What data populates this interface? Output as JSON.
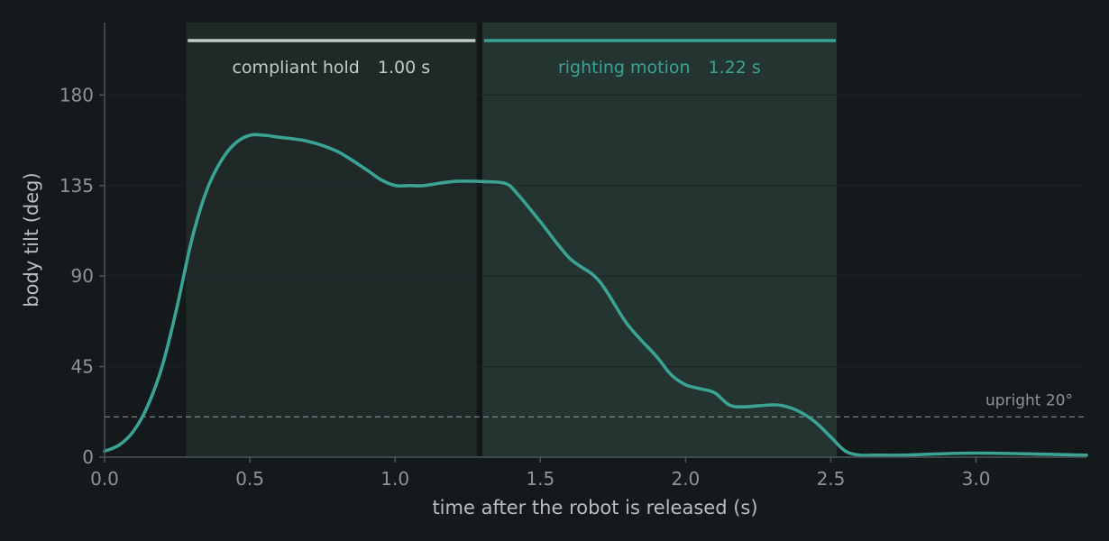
{
  "colors": {
    "background": "#141a1b",
    "hold_band": "#1e2928",
    "righting_band": "#243431",
    "divider": "#101515",
    "hold_accent": "#c4c8c6",
    "righting_accent": "#3aa394",
    "curve": "#3aa394",
    "axis": "#4b5456",
    "grid": "#1c2324",
    "reference_line": "#8c9497"
  },
  "chart_data": {
    "type": "line",
    "xlabel": "time after the robot is released  (s)",
    "ylabel": "body tilt  (deg)",
    "xlim": [
      0,
      3.38
    ],
    "ylim": [
      0,
      216
    ],
    "x_ticks": [
      0.0,
      0.5,
      1.0,
      1.5,
      2.0,
      2.5,
      3.0
    ],
    "x_tick_labels": [
      "0.0",
      "0.5",
      "1.0",
      "1.5",
      "2.0",
      "2.5",
      "3.0"
    ],
    "y_ticks": [
      0,
      45,
      90,
      135,
      180
    ],
    "y_tick_labels": [
      "0",
      "45",
      "90",
      "135",
      "180"
    ],
    "grid": "horizontal",
    "phases": [
      {
        "start": 0.28,
        "end": 1.28,
        "label": "compliant hold",
        "duration_label": "1.00 s"
      },
      {
        "start": 1.3,
        "end": 2.52,
        "label": "righting motion",
        "duration_label": "1.22 s"
      }
    ],
    "reference_line": {
      "y": 20,
      "label": "upright  20°"
    },
    "series": [
      {
        "x": [
          0.0,
          0.05,
          0.1,
          0.15,
          0.2,
          0.25,
          0.3,
          0.35,
          0.4,
          0.45,
          0.5,
          0.55,
          0.6,
          0.7,
          0.8,
          0.9,
          0.95,
          1.0,
          1.05,
          1.1,
          1.2,
          1.3,
          1.38,
          1.42,
          1.5,
          1.6,
          1.7,
          1.8,
          1.9,
          1.95,
          2.0,
          2.05,
          2.1,
          2.15,
          2.2,
          2.3,
          2.35,
          2.4,
          2.45,
          2.5,
          2.55,
          2.6,
          2.65,
          2.75,
          3.0,
          3.38
        ],
        "y": [
          3,
          6,
          13,
          26,
          46,
          75,
          108,
          132,
          147,
          156,
          160,
          160,
          159,
          157,
          152,
          143,
          138,
          135,
          135,
          135,
          137,
          137,
          136,
          131,
          117,
          99,
          88,
          66,
          50,
          41,
          36,
          34,
          32,
          26,
          25,
          26,
          25,
          22,
          17,
          10,
          3,
          1,
          1,
          1,
          2,
          1
        ]
      }
    ]
  }
}
